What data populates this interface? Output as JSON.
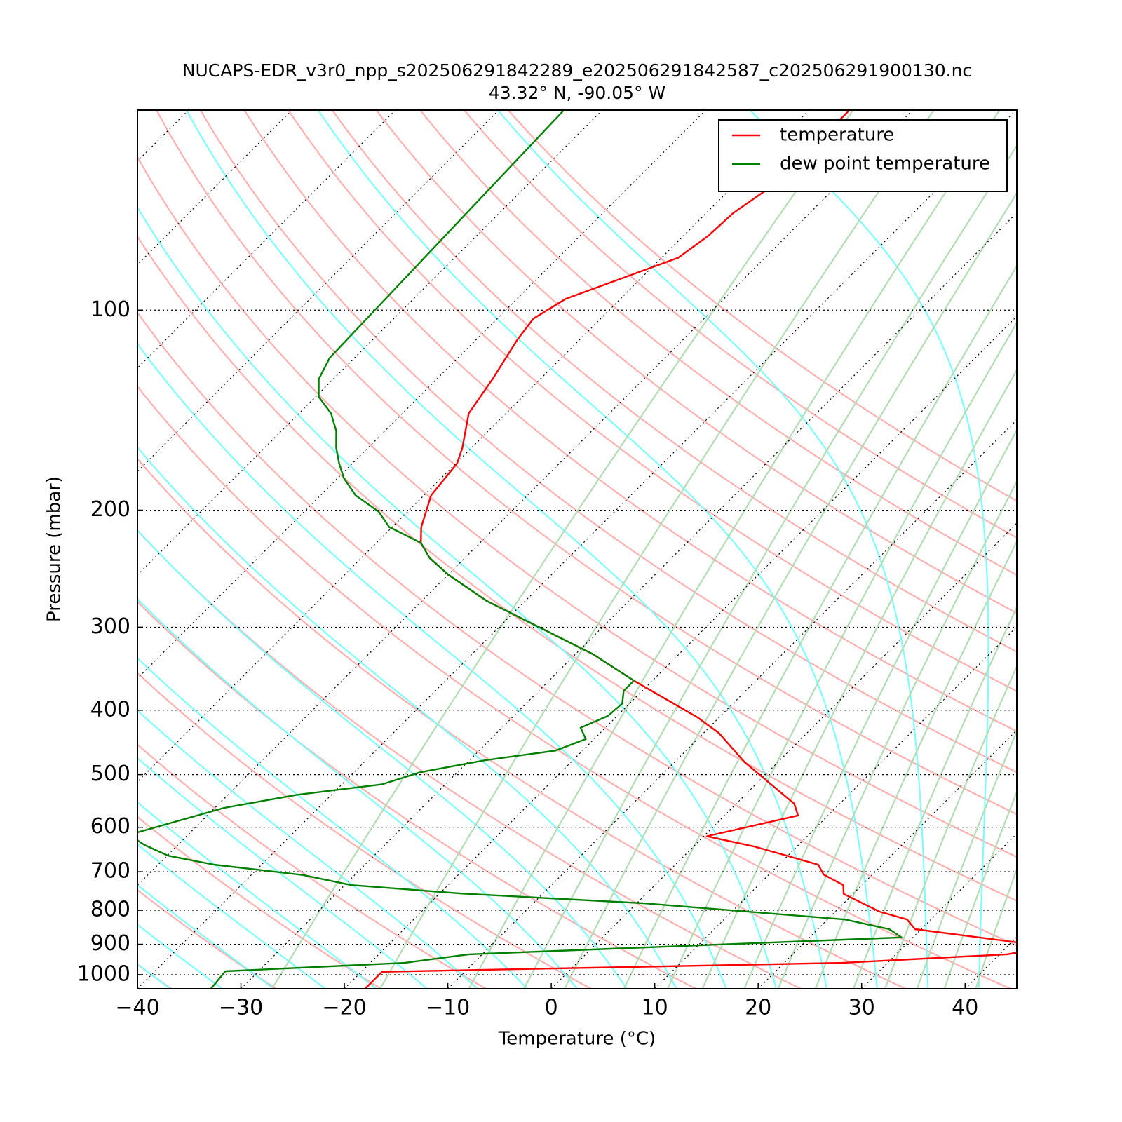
{
  "chart_data": {
    "type": "skewt",
    "title": "NUCAPS-EDR_v3r0_npp_s202506291842289_e202506291842587_c202506291900130.nc",
    "subtitle": "43.32° N, -90.05° W",
    "xlabel": "Temperature (°C)",
    "ylabel": "Pressure (mbar)",
    "xlim": [
      -40,
      45
    ],
    "ylim": [
      1050,
      50
    ],
    "yscale": "log",
    "skew_deg": 45,
    "grid": true,
    "legend": "upper right",
    "xticks": [
      {
        "value": -40,
        "label": "−40"
      },
      {
        "value": -30,
        "label": "−30"
      },
      {
        "value": -20,
        "label": "−20"
      },
      {
        "value": -10,
        "label": "−10"
      },
      0,
      10,
      20,
      30,
      40
    ],
    "yticks": [
      100,
      200,
      300,
      400,
      500,
      600,
      700,
      800,
      900,
      1000
    ],
    "series": [
      {
        "name": "temperature",
        "color": "#ff0000",
        "x": [
          -18.0,
          -18.0,
          25.6,
          40.7,
          44.3,
          29.4,
          27.7,
          24.3,
          19.1,
          18.2,
          15.3,
          13.8,
          5.8,
          0.3,
          7.1,
          5.6,
          -3.2,
          -8.5,
          -12.1,
          -21.8,
          -28.4,
          -43.7,
          -50.0,
          -53.4,
          -55.7,
          -57.2,
          -59.3,
          -59.9,
          -60.9,
          -63.6,
          -64.6,
          -66.0,
          -66.5,
          -65.3,
          -58.4,
          -57.6,
          -57.4,
          -56.1,
          -56.1
        ],
        "values": [
          1050,
          990,
          960,
          932,
          908,
          854,
          826,
          804,
          756,
          733,
          707,
          683,
          641,
          619,
          576,
          553,
          479,
          433,
          410,
          361,
          329,
          274,
          250,
          236,
          224,
          212,
          190,
          170,
          161,
          143,
          127,
          111,
          103,
          96.2,
          83.4,
          77.3,
          71.5,
          64.2,
          50.2
        ]
      },
      {
        "name": "dew point temperature",
        "color": "#008000",
        "x": [
          -32.9,
          -33.2,
          -16.7,
          -11.3,
          28.9,
          26.9,
          21.7,
          0.8,
          -17.8,
          -29.4,
          -35.0,
          -44.6,
          -49.9,
          -53.2,
          -55.7,
          -53.5,
          -49.1,
          -43.3,
          -36.1,
          -33.6,
          -28.6,
          -22.6,
          -20.8,
          -22.4,
          -20.9,
          -20.7,
          -21.8,
          -21.8,
          -28.4,
          -43.7,
          -50.0,
          -53.4,
          -55.7,
          -60.3,
          -62.8,
          -66.6,
          -69.4,
          -71.3,
          -73.1,
          -74.7,
          -76.9,
          -79.7,
          -81.4,
          -82.4,
          -83.7
        ],
        "values": [
          1050,
          988,
          960,
          932,
          879,
          854,
          826,
          781,
          755,
          733,
          708,
          683,
          662,
          638,
          616,
          597,
          561,
          536,
          517,
          496,
          476,
          460,
          442,
          425,
          408,
          391,
          374,
          361,
          329,
          274,
          250,
          236,
          224,
          212,
          201,
          190,
          179,
          170,
          161,
          152,
          143,
          135,
          127,
          118,
          50.2
        ]
      }
    ]
  }
}
